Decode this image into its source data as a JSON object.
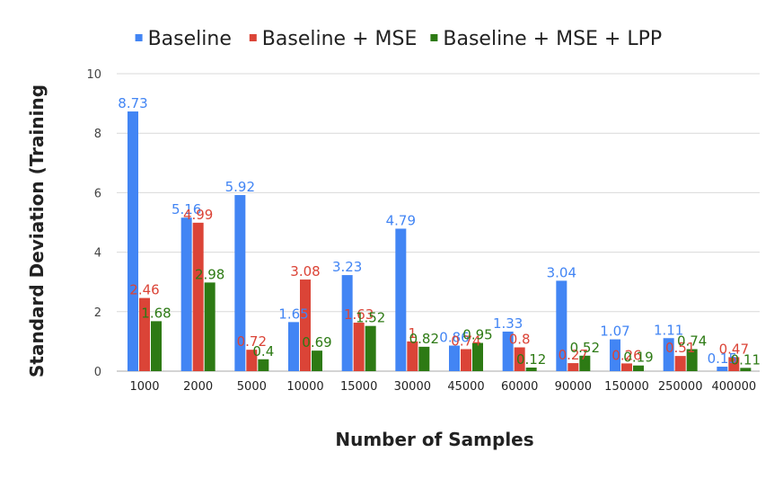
{
  "chart_data": {
    "type": "bar",
    "title": "",
    "xlabel": "Number of Samples",
    "ylabel": "Standard Deviation (Training",
    "ylim": [
      0,
      10
    ],
    "yticks": [
      0,
      2,
      4,
      6,
      8,
      10
    ],
    "grid": true,
    "legend_position": "top",
    "categories": [
      "1000",
      "2000",
      "5000",
      "10000",
      "15000",
      "30000",
      "45000",
      "60000",
      "90000",
      "150000",
      "250000",
      "400000"
    ],
    "series": [
      {
        "name": "Baseline",
        "color": "#4285f4",
        "values": [
          8.73,
          5.16,
          5.92,
          1.65,
          3.23,
          4.79,
          0.86,
          1.33,
          3.04,
          1.07,
          1.11,
          0.15
        ],
        "labels": [
          "8.73",
          "5.16",
          "5.92",
          "1.65",
          "3.23",
          "4.79",
          "0.86",
          "1.33",
          "3.04",
          "1.07",
          "1.11",
          "0.15"
        ]
      },
      {
        "name": "Baseline + MSE",
        "color": "#db4437",
        "values": [
          2.46,
          4.99,
          0.72,
          3.08,
          1.63,
          1,
          0.74,
          0.8,
          0.27,
          0.26,
          0.51,
          0.47
        ],
        "labels": [
          "2.46",
          "4.99",
          "0.72",
          "3.08",
          "1.63",
          "1",
          "0.74",
          "0.8",
          "0.27",
          "0.26",
          "0.51",
          "0.47"
        ]
      },
      {
        "name": "Baseline + MSE + LPP",
        "color": "#2d7a14",
        "values": [
          1.68,
          2.98,
          0.4,
          0.69,
          1.52,
          0.82,
          0.95,
          0.12,
          0.52,
          0.19,
          0.74,
          0.11
        ],
        "labels": [
          "1.68",
          "2.98",
          "0.4",
          "0.69",
          "1.52",
          "0.82",
          "0.95",
          "0.12",
          "0.52",
          "0.19",
          "0.74",
          "0.11"
        ]
      }
    ]
  }
}
